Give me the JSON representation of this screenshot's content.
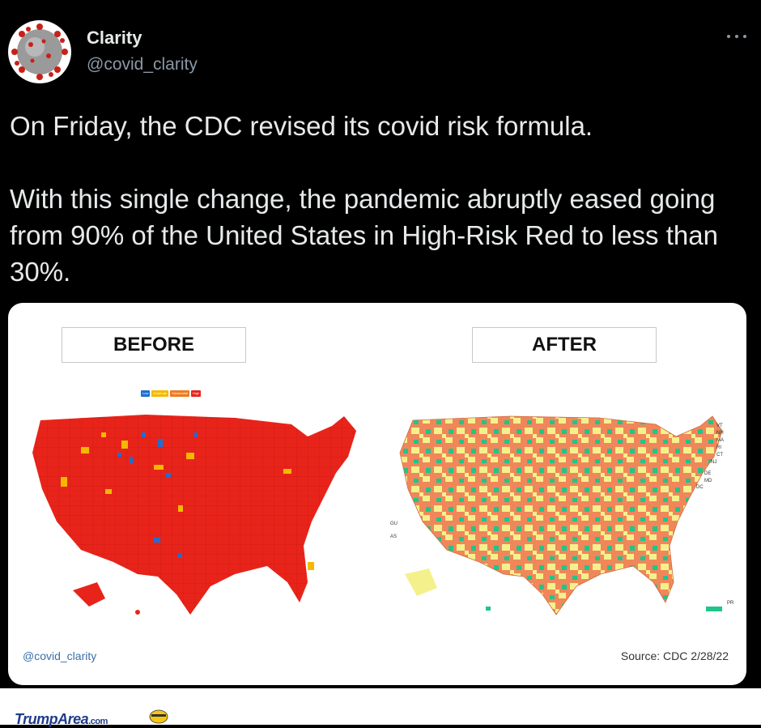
{
  "author": {
    "display_name": "Clarity",
    "handle": "@covid_clarity"
  },
  "tweet": {
    "paragraph_1": "On Friday, the CDC revised its covid risk formula.",
    "paragraph_2": "With this single change, the pandemic abruptly eased going from 90% of the United States in High-Risk Red to less than 30%."
  },
  "image": {
    "before_label": "BEFORE",
    "after_label": "AFTER",
    "legend": [
      {
        "label": "Low",
        "color": "#1f6fd1"
      },
      {
        "label": "Moderate",
        "color": "#f5b800"
      },
      {
        "label": "Substantial",
        "color": "#f07a20"
      },
      {
        "label": "High",
        "color": "#e8241a"
      }
    ],
    "after_colors": {
      "low": "#1fc58a",
      "medium": "#f4f18c",
      "high": "#f0875a"
    },
    "after_labels": [
      "VT",
      "NH",
      "MA",
      "RI",
      "CT",
      "NJ",
      "DE",
      "MD",
      "DC",
      "GU",
      "AS",
      "PR"
    ],
    "credit": "@covid_clarity",
    "source": "Source: CDC  2/28/22"
  },
  "site": {
    "logo": "TrumpArea",
    "logo_suffix": ".com"
  }
}
